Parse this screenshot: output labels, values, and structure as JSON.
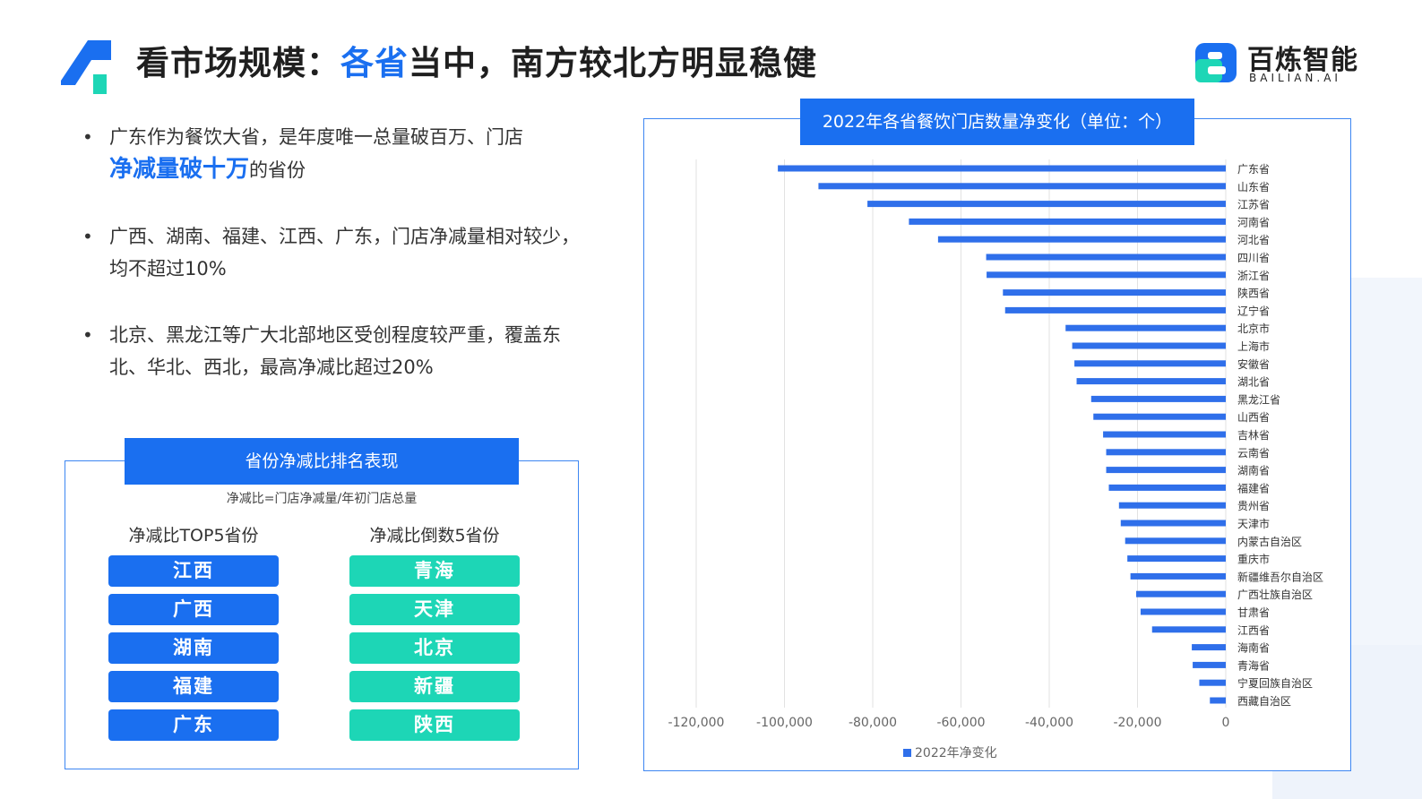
{
  "header": {
    "title_pre": "看市场规模：",
    "title_hl": "各省",
    "title_post": "当中，南方较北方明显稳健",
    "logo_name": "百炼智能",
    "logo_sub": "BAILIAN.AI",
    "colors": {
      "accent": "#1a6ff0",
      "teal": "#1dd6b6"
    }
  },
  "bullets": [
    {
      "dot": "•",
      "pre": "广东作为餐饮大省，是年度唯一总量破百万、门店",
      "em": "净减量破十万",
      "post": "的省份"
    },
    {
      "dot": "•",
      "text": "广西、湖南、福建、江西、广东，门店净减量相对较少，均不超过10%"
    },
    {
      "dot": "•",
      "text": "北京、黑龙江等广大北部地区受创程度较严重，覆盖东北、华北、西北，最高净减比超过20%"
    }
  ],
  "ranking": {
    "title": "省份净减比排名表现",
    "formula": "净减比=门店净减量/年初门店总量",
    "top_label": "净减比TOP5省份",
    "bottom_label": "净减比倒数5省份",
    "top5": [
      "江西",
      "广西",
      "湖南",
      "福建",
      "广东"
    ],
    "bottom5": [
      "青海",
      "天津",
      "北京",
      "新疆",
      "陕西"
    ]
  },
  "chart_title": "2022年各省餐饮门店数量净变化（单位：个）",
  "chart_data": {
    "type": "bar",
    "orientation": "horizontal",
    "title": "2022年各省餐饮门店数量净变化（单位：个）",
    "categories": [
      "广东省",
      "山东省",
      "江苏省",
      "河南省",
      "河北省",
      "四川省",
      "浙江省",
      "陕西省",
      "辽宁省",
      "北京市",
      "上海市",
      "安徽省",
      "湖北省",
      "黑龙江省",
      "山西省",
      "吉林省",
      "云南省",
      "湖南省",
      "福建省",
      "贵州省",
      "天津市",
      "内蒙古自治区",
      "重庆市",
      "新疆维吾尔自治区",
      "广西壮族自治区",
      "甘肃省",
      "江西省",
      "海南省",
      "青海省",
      "宁夏回族自治区",
      "西藏自治区"
    ],
    "series": [
      {
        "name": "2022年净变化",
        "color": "#2f6fea",
        "values": [
          -101500,
          -92300,
          -81200,
          -71800,
          -65200,
          -54300,
          -54200,
          -50500,
          -50000,
          -36300,
          -34800,
          -34300,
          -33800,
          -30500,
          -30000,
          -27800,
          -27100,
          -27100,
          -26500,
          -24200,
          -23800,
          -22800,
          -22300,
          -21600,
          -20300,
          -19300,
          -16700,
          -7700,
          -7500,
          -6000,
          -3600
        ]
      }
    ],
    "xlim": [
      -120000,
      0
    ],
    "xticks": [
      -120000,
      -100000,
      -80000,
      -60000,
      -40000,
      -20000,
      0
    ],
    "xtick_labels": [
      "-120,000",
      "-100,000",
      "-80,000",
      "-60,000",
      "-40,000",
      "-20,000",
      "0"
    ],
    "grid": true,
    "legend": "bottom"
  }
}
